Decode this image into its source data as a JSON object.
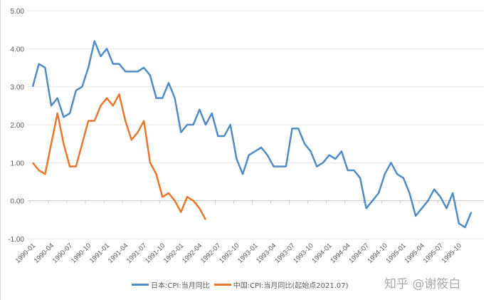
{
  "chart_data": {
    "type": "line",
    "title": "",
    "xlabel": "",
    "ylabel": "",
    "ylim": [
      -1,
      5
    ],
    "yticks": [
      "5.00",
      "4.00",
      "3.00",
      "2.00",
      "1.00",
      "0.00",
      "-1.00"
    ],
    "ytick_values": [
      5,
      4,
      3,
      2,
      1,
      0,
      -1
    ],
    "grid": true,
    "legend_position": "bottom",
    "x_start": "1990-01",
    "xtick_labels": [
      "1990-01",
      "1990-04",
      "1990-07",
      "1990-10",
      "1991-01",
      "1991-04",
      "1991-07",
      "1991-10",
      "1992-01",
      "1992-04",
      "1992-07",
      "1992-10",
      "1993-01",
      "1993-04",
      "1993-07",
      "1993-10",
      "1994-01",
      "1994-04",
      "1994-07",
      "1994-10",
      "1995-01",
      "1995-04",
      "1995-07",
      "1995-10"
    ],
    "series": [
      {
        "name": "日本:CPI:当月同比",
        "color": "#4f8bc4",
        "values": [
          3.0,
          3.6,
          3.5,
          2.5,
          2.7,
          2.2,
          2.3,
          2.9,
          3.0,
          3.5,
          4.2,
          3.8,
          4.0,
          3.6,
          3.6,
          3.4,
          3.4,
          3.4,
          3.5,
          3.3,
          2.7,
          2.7,
          3.1,
          2.7,
          1.8,
          2.0,
          2.0,
          2.4,
          2.0,
          2.3,
          1.7,
          1.7,
          2.0,
          1.1,
          0.7,
          1.2,
          1.3,
          1.4,
          1.2,
          0.9,
          0.9,
          0.9,
          1.9,
          1.9,
          1.5,
          1.3,
          0.9,
          1.0,
          1.2,
          1.1,
          1.3,
          0.8,
          0.8,
          0.6,
          -0.2,
          0.0,
          0.2,
          0.7,
          1.0,
          0.7,
          0.6,
          0.2,
          -0.4,
          -0.2,
          0.0,
          0.3,
          0.1,
          -0.2,
          0.2,
          -0.6,
          -0.7,
          -0.3
        ]
      },
      {
        "name": "中国:CPI:当月同比(起始点2021.07)",
        "color": "#e8762d",
        "values": [
          1.0,
          0.8,
          0.7,
          1.5,
          2.3,
          1.5,
          0.9,
          0.9,
          1.5,
          2.1,
          2.1,
          2.5,
          2.7,
          2.5,
          2.8,
          2.1,
          1.6,
          1.8,
          2.1,
          1.0,
          0.7,
          0.1,
          0.2,
          0.0,
          -0.3,
          0.1,
          0.0,
          -0.2,
          -0.5
        ]
      }
    ]
  },
  "watermark": "知乎 @谢筱白"
}
